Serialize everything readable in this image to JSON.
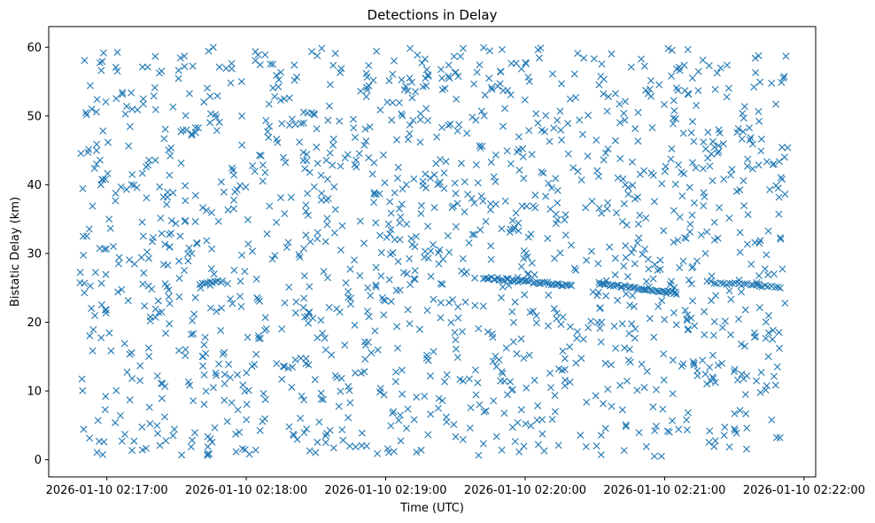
{
  "chart_data": {
    "type": "scatter",
    "title": "Detections in Delay",
    "xlabel": "Time (UTC)",
    "ylabel": "Bistatic Delay (km)",
    "marker": "x",
    "color": "#1f77b4",
    "grid": false,
    "legend": "none",
    "x_ticks": [
      "2026-01-10 02:17:00",
      "2026-01-10 02:18:00",
      "2026-01-10 02:19:00",
      "2026-01-10 02:20:00",
      "2026-01-10 02:21:00",
      "2026-01-10 02:22:00"
    ],
    "y_ticks": [
      "0",
      "10",
      "20",
      "30",
      "40",
      "50",
      "60"
    ],
    "xlim": [
      "2026-01-10 02:16:35",
      "2026-01-10 02:22:05"
    ],
    "ylim": [
      -2.5,
      63
    ],
    "noise": {
      "x_range": [
        "2026-01-10 02:16:48",
        "2026-01-10 02:21:53"
      ],
      "y_range": [
        0.5,
        60
      ],
      "count": 1500
    },
    "tracks": [
      {
        "x_start": "2026-01-10 02:19:42",
        "x_end": "2026-01-10 02:20:20",
        "y_start": 26.5,
        "y_end": 25.3,
        "points": 44
      },
      {
        "x_start": "2026-01-10 02:20:32",
        "x_end": "2026-01-10 02:21:05",
        "y_start": 25.6,
        "y_end": 24.3,
        "points": 38
      },
      {
        "x_start": "2026-01-10 02:21:20",
        "x_end": "2026-01-10 02:21:50",
        "y_start": 25.8,
        "y_end": 25.1,
        "points": 24
      },
      {
        "x_start": "2026-01-10 02:17:40",
        "x_end": "2026-01-10 02:17:50",
        "y_start": 25.5,
        "y_end": 26.0,
        "points": 10
      }
    ]
  }
}
